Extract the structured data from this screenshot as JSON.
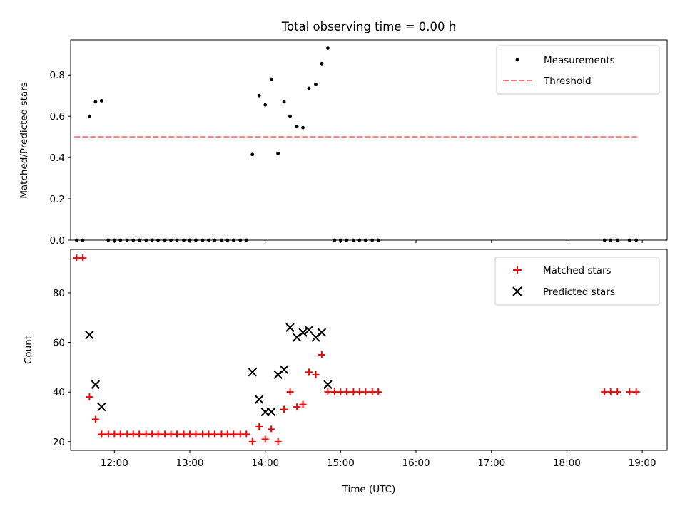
{
  "figure": {
    "title": "Total observing time = 0.00 h"
  },
  "colors": {
    "matched": "#ff0000",
    "predicted": "#000000",
    "measurement": "#000000",
    "threshold": "#ff7b7b"
  },
  "chart_data": [
    {
      "type": "scatter",
      "ylabel": "Matched/Predicted stars",
      "ylim": [
        0,
        0.97
      ],
      "yticks": [
        "0.0",
        "0.2",
        "0.4",
        "0.6",
        "0.8"
      ],
      "ytick_values": [
        0,
        0.2,
        0.4,
        0.6,
        0.8
      ],
      "xlim": [
        11.42,
        19.33
      ],
      "legend": "upper right",
      "threshold": {
        "name": "Threshold",
        "value": 0.5,
        "x_range": [
          11.47,
          18.93
        ]
      },
      "series": [
        {
          "name": "Measurements",
          "marker": "dot",
          "x": [
            11.5,
            11.58,
            11.67,
            11.75,
            11.83,
            11.92,
            12.0,
            12.08,
            12.17,
            12.25,
            12.33,
            12.42,
            12.5,
            12.58,
            12.67,
            12.75,
            12.83,
            12.92,
            13.0,
            13.08,
            13.17,
            13.25,
            13.33,
            13.42,
            13.5,
            13.58,
            13.67,
            13.75,
            13.83,
            13.92,
            14.0,
            14.08,
            14.17,
            14.25,
            14.33,
            14.42,
            14.5,
            14.58,
            14.67,
            14.75,
            14.83,
            14.92,
            15.0,
            15.08,
            15.17,
            15.25,
            15.33,
            15.42,
            15.5,
            18.5,
            18.58,
            18.67,
            18.83,
            18.92
          ],
          "y": [
            0,
            0,
            0.6,
            0.67,
            0.675,
            0,
            0,
            0,
            0,
            0,
            0,
            0,
            0,
            0,
            0,
            0,
            0,
            0,
            0,
            0,
            0,
            0,
            0,
            0,
            0,
            0,
            0,
            0,
            0.415,
            0.7,
            0.655,
            0.78,
            0.42,
            0.67,
            0.6,
            0.55,
            0.545,
            0.735,
            0.755,
            0.855,
            0.93,
            0,
            0,
            0,
            0,
            0,
            0,
            0,
            0,
            0,
            0,
            0,
            0,
            0
          ]
        }
      ]
    },
    {
      "type": "scatter",
      "xlabel": "Time (UTC)",
      "ylabel": "Count",
      "ylim": [
        16.5,
        97.5
      ],
      "yticks": [
        "20",
        "40",
        "60",
        "80"
      ],
      "ytick_values": [
        20,
        40,
        60,
        80
      ],
      "xlim": [
        11.42,
        19.33
      ],
      "xticks": [
        "12:00",
        "13:00",
        "14:00",
        "15:00",
        "16:00",
        "17:00",
        "18:00",
        "19:00"
      ],
      "xtick_values": [
        12,
        13,
        14,
        15,
        16,
        17,
        18,
        19
      ],
      "legend": "upper right",
      "series": [
        {
          "name": "Matched stars",
          "marker": "plus",
          "x": [
            11.5,
            11.58,
            11.67,
            11.75,
            11.83,
            11.92,
            12.0,
            12.08,
            12.17,
            12.25,
            12.33,
            12.42,
            12.5,
            12.58,
            12.67,
            12.75,
            12.83,
            12.92,
            13.0,
            13.08,
            13.17,
            13.25,
            13.33,
            13.42,
            13.5,
            13.58,
            13.67,
            13.75,
            13.83,
            13.92,
            14.0,
            14.08,
            14.17,
            14.25,
            14.33,
            14.42,
            14.5,
            14.58,
            14.67,
            14.75,
            14.83,
            14.92,
            15.0,
            15.08,
            15.17,
            15.25,
            15.33,
            15.42,
            15.5,
            18.5,
            18.58,
            18.67,
            18.83,
            18.92
          ],
          "y": [
            94,
            94,
            38,
            29,
            23,
            23,
            23,
            23,
            23,
            23,
            23,
            23,
            23,
            23,
            23,
            23,
            23,
            23,
            23,
            23,
            23,
            23,
            23,
            23,
            23,
            23,
            23,
            23,
            20,
            26,
            21,
            25,
            20,
            33,
            40,
            34,
            35,
            48,
            47,
            55,
            40,
            40,
            40,
            40,
            40,
            40,
            40,
            40,
            40,
            40,
            40,
            40,
            40,
            40
          ]
        },
        {
          "name": "Predicted stars",
          "marker": "x",
          "x": [
            11.67,
            11.75,
            11.83,
            13.83,
            13.92,
            14.0,
            14.08,
            14.17,
            14.25,
            14.33,
            14.42,
            14.5,
            14.58,
            14.67,
            14.75,
            14.83
          ],
          "y": [
            63,
            43,
            34,
            48,
            37,
            32,
            32,
            47,
            49,
            66,
            62,
            64,
            65,
            62,
            64,
            43
          ]
        }
      ]
    }
  ]
}
